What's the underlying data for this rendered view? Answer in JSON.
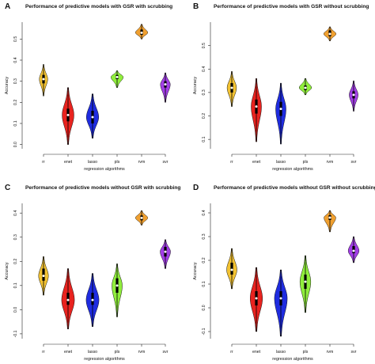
{
  "chart_data": [
    {
      "type": "violin",
      "panel_label": "A",
      "title": "Performance of predictive models with GSR with scrubbing",
      "xlabel": "regression algorithms",
      "ylabel": "Accuracy",
      "ylim": [
        -0.02,
        0.58
      ],
      "yticks": [
        "0.0",
        "0.1",
        "0.2",
        "0.3",
        "0.4",
        "0.5"
      ],
      "categories": [
        "rr",
        "enet",
        "lasso",
        "pls",
        "rvm",
        "svr"
      ],
      "colors": [
        "#f2c232",
        "#e8231f",
        "#1f2ce0",
        "#90ee3c",
        "#f0a030",
        "#a23ee6"
      ],
      "violins": [
        {
          "name": "rr",
          "min": 0.23,
          "max": 0.38,
          "median": 0.31,
          "q1": 0.29,
          "q3": 0.33,
          "width": 0.34
        },
        {
          "name": "enet",
          "min": 0.0,
          "max": 0.27,
          "median": 0.14,
          "q1": 0.11,
          "q3": 0.17,
          "width": 0.48
        },
        {
          "name": "lasso",
          "min": 0.03,
          "max": 0.24,
          "median": 0.13,
          "q1": 0.1,
          "q3": 0.16,
          "width": 0.5
        },
        {
          "name": "pls",
          "min": 0.27,
          "max": 0.35,
          "median": 0.32,
          "q1": 0.31,
          "q3": 0.33,
          "width": 0.5
        },
        {
          "name": "rvm",
          "min": 0.5,
          "max": 0.57,
          "median": 0.53,
          "q1": 0.52,
          "q3": 0.545,
          "width": 0.5
        },
        {
          "name": "svr",
          "min": 0.2,
          "max": 0.34,
          "median": 0.285,
          "q1": 0.27,
          "q3": 0.3,
          "width": 0.4
        }
      ]
    },
    {
      "type": "violin",
      "panel_label": "B",
      "title": "Performance of predictive models with GSR without scrubbing",
      "xlabel": "regression algorithms",
      "ylabel": "Accuracy",
      "ylim": [
        0.06,
        0.6
      ],
      "yticks": [
        "0.1",
        "0.2",
        "0.3",
        "0.4",
        "0.5"
      ],
      "categories": [
        "rr",
        "enet",
        "lasso",
        "pls",
        "rvm",
        "svr"
      ],
      "colors": [
        "#f2c232",
        "#e8231f",
        "#1f2ce0",
        "#90ee3c",
        "#f0a030",
        "#a23ee6"
      ],
      "violins": [
        {
          "name": "rr",
          "min": 0.24,
          "max": 0.39,
          "median": 0.32,
          "q1": 0.3,
          "q3": 0.34,
          "width": 0.38
        },
        {
          "name": "enet",
          "min": 0.09,
          "max": 0.36,
          "median": 0.24,
          "q1": 0.21,
          "q3": 0.27,
          "width": 0.42
        },
        {
          "name": "lasso",
          "min": 0.08,
          "max": 0.34,
          "median": 0.23,
          "q1": 0.2,
          "q3": 0.26,
          "width": 0.42
        },
        {
          "name": "pls",
          "min": 0.29,
          "max": 0.36,
          "median": 0.32,
          "q1": 0.31,
          "q3": 0.33,
          "width": 0.5
        },
        {
          "name": "rvm",
          "min": 0.52,
          "max": 0.58,
          "median": 0.55,
          "q1": 0.54,
          "q3": 0.565,
          "width": 0.5
        },
        {
          "name": "svr",
          "min": 0.22,
          "max": 0.35,
          "median": 0.29,
          "q1": 0.275,
          "q3": 0.305,
          "width": 0.36
        }
      ]
    },
    {
      "type": "violin",
      "panel_label": "C",
      "title": "Performance of predictive models without GSR with scrubbing",
      "xlabel": "regression algorithms",
      "ylabel": "Accuracy",
      "ylim": [
        -0.12,
        0.44
      ],
      "yticks": [
        "-0.1",
        "0.0",
        "0.1",
        "0.2",
        "0.3",
        "0.4"
      ],
      "categories": [
        "rr",
        "enet",
        "lasso",
        "pls",
        "rvm",
        "svr"
      ],
      "colors": [
        "#f2c232",
        "#e8231f",
        "#1f2ce0",
        "#90ee3c",
        "#f0a030",
        "#a23ee6"
      ],
      "violins": [
        {
          "name": "rr",
          "min": 0.06,
          "max": 0.22,
          "median": 0.14,
          "q1": 0.12,
          "q3": 0.17,
          "width": 0.4
        },
        {
          "name": "enet",
          "min": -0.08,
          "max": 0.17,
          "median": 0.04,
          "q1": 0.02,
          "q3": 0.07,
          "width": 0.52
        },
        {
          "name": "lasso",
          "min": -0.07,
          "max": 0.15,
          "median": 0.04,
          "q1": 0.02,
          "q3": 0.07,
          "width": 0.52
        },
        {
          "name": "pls",
          "min": -0.03,
          "max": 0.19,
          "median": 0.1,
          "q1": 0.07,
          "q3": 0.13,
          "width": 0.42
        },
        {
          "name": "rvm",
          "min": 0.35,
          "max": 0.41,
          "median": 0.38,
          "q1": 0.37,
          "q3": 0.39,
          "width": 0.5
        },
        {
          "name": "svr",
          "min": 0.17,
          "max": 0.29,
          "median": 0.24,
          "q1": 0.22,
          "q3": 0.26,
          "width": 0.42
        }
      ]
    },
    {
      "type": "violin",
      "panel_label": "D",
      "title": "Performance of predictive models without GSR without scrubbing",
      "xlabel": "regression algorithms",
      "ylabel": "Accuracy",
      "ylim": [
        -0.13,
        0.44
      ],
      "yticks": [
        "-0.1",
        "0.0",
        "0.1",
        "0.2",
        "0.3",
        "0.4"
      ],
      "categories": [
        "rr",
        "enet",
        "lasso",
        "pls",
        "rvm",
        "svr"
      ],
      "colors": [
        "#f2c232",
        "#e8231f",
        "#1f2ce0",
        "#90ee3c",
        "#f0a030",
        "#a23ee6"
      ],
      "violins": [
        {
          "name": "rr",
          "min": 0.08,
          "max": 0.25,
          "median": 0.16,
          "q1": 0.14,
          "q3": 0.19,
          "width": 0.42
        },
        {
          "name": "enet",
          "min": -0.1,
          "max": 0.17,
          "median": 0.04,
          "q1": 0.01,
          "q3": 0.07,
          "width": 0.5
        },
        {
          "name": "lasso",
          "min": -0.12,
          "max": 0.16,
          "median": 0.04,
          "q1": 0.01,
          "q3": 0.07,
          "width": 0.52
        },
        {
          "name": "pls",
          "min": -0.02,
          "max": 0.22,
          "median": 0.11,
          "q1": 0.08,
          "q3": 0.14,
          "width": 0.44
        },
        {
          "name": "rvm",
          "min": 0.32,
          "max": 0.41,
          "median": 0.38,
          "q1": 0.37,
          "q3": 0.39,
          "width": 0.48
        },
        {
          "name": "svr",
          "min": 0.19,
          "max": 0.3,
          "median": 0.24,
          "q1": 0.23,
          "q3": 0.26,
          "width": 0.44
        }
      ]
    }
  ]
}
